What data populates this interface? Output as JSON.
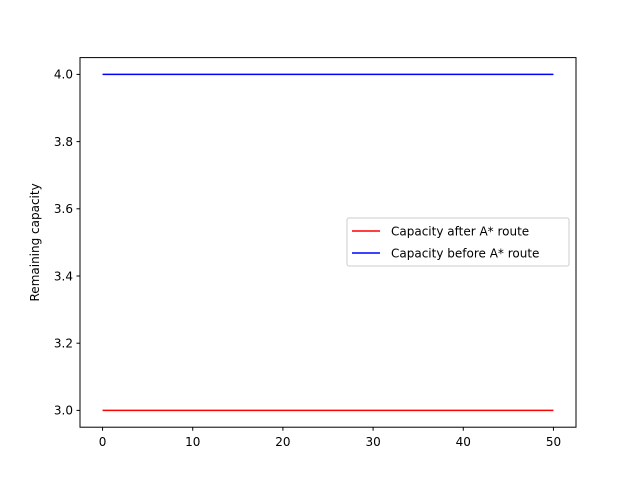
{
  "chart_data": {
    "type": "line",
    "title": "",
    "xlabel": "",
    "ylabel": "Remaining capacity",
    "xlim": [
      -2.5,
      52.5
    ],
    "ylim": [
      2.95,
      4.05
    ],
    "xticks": [
      0,
      10,
      20,
      30,
      40,
      50
    ],
    "yticks": [
      3.0,
      3.2,
      3.4,
      3.6,
      3.8,
      4.0
    ],
    "xtick_labels": [
      "0",
      "10",
      "20",
      "30",
      "40",
      "50"
    ],
    "ytick_labels": [
      "3.0",
      "3.2",
      "3.4",
      "3.6",
      "3.8",
      "4.0"
    ],
    "grid": false,
    "legend_placement": "center-right",
    "series": [
      {
        "name": "Capacity after A* route",
        "color": "#ff0000",
        "x": [
          0,
          50
        ],
        "y": [
          3.0,
          3.0
        ]
      },
      {
        "name": "Capacity before A* route",
        "color": "#0000ff",
        "x": [
          0,
          50
        ],
        "y": [
          4.0,
          4.0
        ]
      }
    ]
  }
}
